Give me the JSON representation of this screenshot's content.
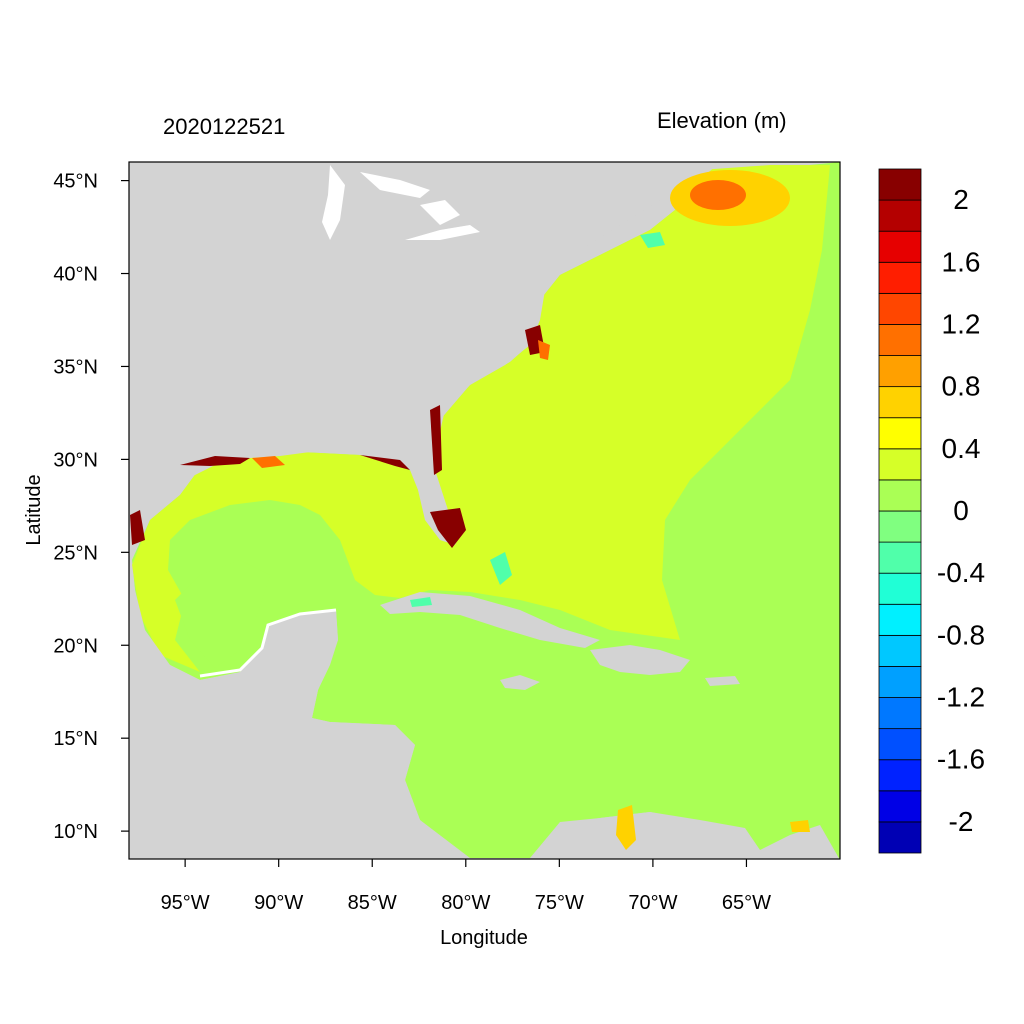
{
  "header": {
    "left_label": "2020122521",
    "right_label": "Elevation (m)"
  },
  "axes": {
    "xlabel": "Longitude",
    "ylabel": "Latitude",
    "lon_range": [
      -98,
      -60
    ],
    "lat_range": [
      8.5,
      46
    ],
    "x_ticks": [
      {
        "value": -95,
        "label": "95°W"
      },
      {
        "value": -90,
        "label": "90°W"
      },
      {
        "value": -85,
        "label": "85°W"
      },
      {
        "value": -80,
        "label": "80°W"
      },
      {
        "value": -75,
        "label": "75°W"
      },
      {
        "value": -70,
        "label": "70°W"
      },
      {
        "value": -65,
        "label": "65°W"
      }
    ],
    "y_ticks": [
      {
        "value": 45,
        "label": "45°N"
      },
      {
        "value": 40,
        "label": "40°N"
      },
      {
        "value": 35,
        "label": "35°N"
      },
      {
        "value": 30,
        "label": "30°N"
      },
      {
        "value": 25,
        "label": "25°N"
      },
      {
        "value": 20,
        "label": "20°N"
      },
      {
        "value": 15,
        "label": "15°N"
      },
      {
        "value": 10,
        "label": "10°N"
      }
    ]
  },
  "colorbar": {
    "levels": [
      -2.2,
      -2.0,
      -1.8,
      -1.6,
      -1.4,
      -1.2,
      -1.0,
      -0.8,
      -0.6,
      -0.4,
      -0.2,
      0.0,
      0.2,
      0.4,
      0.6,
      0.8,
      1.0,
      1.2,
      1.4,
      1.6,
      1.8,
      2.0,
      2.2
    ],
    "colors": [
      "#0000b4",
      "#0000e6",
      "#0022ff",
      "#0050ff",
      "#0078ff",
      "#00a0ff",
      "#00c8ff",
      "#00f0ff",
      "#20ffd6",
      "#50ffaa",
      "#80ff80",
      "#aaff55",
      "#d6ff28",
      "#ffff00",
      "#ffd200",
      "#ffa000",
      "#ff7000",
      "#ff4600",
      "#ff1e00",
      "#e60000",
      "#b40000",
      "#880000"
    ],
    "labels": [
      {
        "value": 2.0,
        "label": "2"
      },
      {
        "value": 1.6,
        "label": "1.6"
      },
      {
        "value": 1.2,
        "label": "1.2"
      },
      {
        "value": 0.8,
        "label": "0.8"
      },
      {
        "value": 0.4,
        "label": "0.4"
      },
      {
        "value": 0.0,
        "label": "0"
      },
      {
        "value": -0.4,
        "label": "-0.4"
      },
      {
        "value": -0.8,
        "label": "-0.8"
      },
      {
        "value": -1.2,
        "label": "-1.2"
      },
      {
        "value": -1.6,
        "label": "-1.6"
      },
      {
        "value": -2.0,
        "label": "-2"
      }
    ]
  },
  "map_colors": {
    "land": "#d3d3d3",
    "ocean_open": "#aaff55",
    "ocean_gulf_atlantic": "#d6ff28",
    "surge_high": "#880000",
    "surge_mid": "#ff7000",
    "surge_low": "#ffd200",
    "drawdown": "#50ffaa",
    "coast_edge": "#ffffff"
  }
}
